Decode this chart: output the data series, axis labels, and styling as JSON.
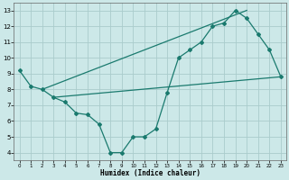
{
  "xlabel": "Humidex (Indice chaleur)",
  "bg_color": "#cce8e8",
  "grid_color": "#aacccc",
  "line_color": "#1a7a6e",
  "xlim": [
    -0.5,
    23.5
  ],
  "ylim": [
    3.5,
    13.5
  ],
  "xticks": [
    0,
    1,
    2,
    3,
    4,
    5,
    6,
    7,
    8,
    9,
    10,
    11,
    12,
    13,
    14,
    15,
    16,
    17,
    18,
    19,
    20,
    21,
    22,
    23
  ],
  "yticks": [
    4,
    5,
    6,
    7,
    8,
    9,
    10,
    11,
    12,
    13
  ],
  "line1_x": [
    0,
    1,
    2,
    3,
    4,
    5,
    6,
    7,
    8,
    9,
    10,
    11,
    12,
    13,
    14,
    15,
    16,
    17,
    18,
    19,
    20,
    21,
    22,
    23
  ],
  "line1_y": [
    9.2,
    8.2,
    8.0,
    7.5,
    7.2,
    6.5,
    6.4,
    5.8,
    4.0,
    4.0,
    5.0,
    5.0,
    5.5,
    7.8,
    10.0,
    10.5,
    11.0,
    12.0,
    12.2,
    13.0,
    12.5,
    11.5,
    10.5,
    8.8
  ],
  "line2_x": [
    2,
    20
  ],
  "line2_y": [
    8.0,
    13.0
  ],
  "line3_x": [
    3,
    23
  ],
  "line3_y": [
    7.5,
    8.8
  ]
}
